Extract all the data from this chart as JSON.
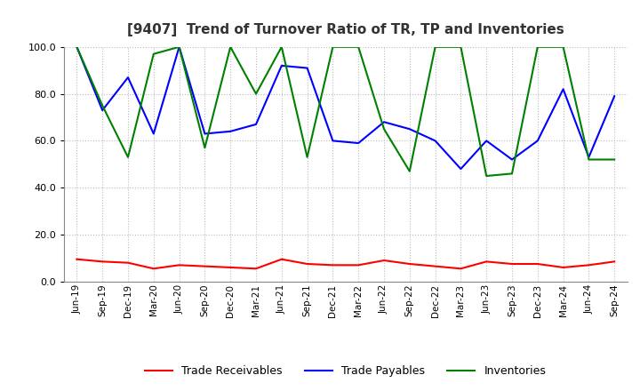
{
  "title": "[9407]  Trend of Turnover Ratio of TR, TP and Inventories",
  "labels": [
    "Jun-19",
    "Sep-19",
    "Dec-19",
    "Mar-20",
    "Jun-20",
    "Sep-20",
    "Dec-20",
    "Mar-21",
    "Jun-21",
    "Sep-21",
    "Dec-21",
    "Mar-22",
    "Jun-22",
    "Sep-22",
    "Dec-22",
    "Mar-23",
    "Jun-23",
    "Sep-23",
    "Dec-23",
    "Mar-24",
    "Jun-24",
    "Sep-24"
  ],
  "trade_receivables": [
    9.5,
    8.5,
    8.0,
    5.5,
    7.0,
    6.5,
    6.0,
    5.5,
    9.5,
    7.5,
    7.0,
    7.0,
    9.0,
    7.5,
    6.5,
    5.5,
    8.5,
    7.5,
    7.5,
    6.0,
    7.0,
    8.5
  ],
  "trade_payables": [
    100.0,
    73.0,
    87.0,
    63.0,
    100.0,
    63.0,
    64.0,
    67.0,
    92.0,
    91.0,
    60.0,
    59.0,
    68.0,
    65.0,
    60.0,
    48.0,
    60.0,
    52.0,
    60.0,
    82.0,
    53.0,
    79.0
  ],
  "inventories": [
    100.0,
    75.0,
    53.0,
    97.0,
    100.0,
    57.0,
    100.0,
    80.0,
    100.0,
    53.0,
    100.0,
    100.0,
    65.0,
    47.0,
    100.0,
    100.0,
    45.0,
    46.0,
    100.0,
    100.0,
    52.0,
    52.0
  ],
  "ylim": [
    0.0,
    100.0
  ],
  "yticks": [
    0.0,
    20.0,
    40.0,
    60.0,
    80.0,
    100.0
  ],
  "tr_color": "#FF0000",
  "tp_color": "#0000FF",
  "inv_color": "#008000",
  "legend_labels": [
    "Trade Receivables",
    "Trade Payables",
    "Inventories"
  ],
  "background_color": "#FFFFFF",
  "grid_color": "#BBBBBB"
}
